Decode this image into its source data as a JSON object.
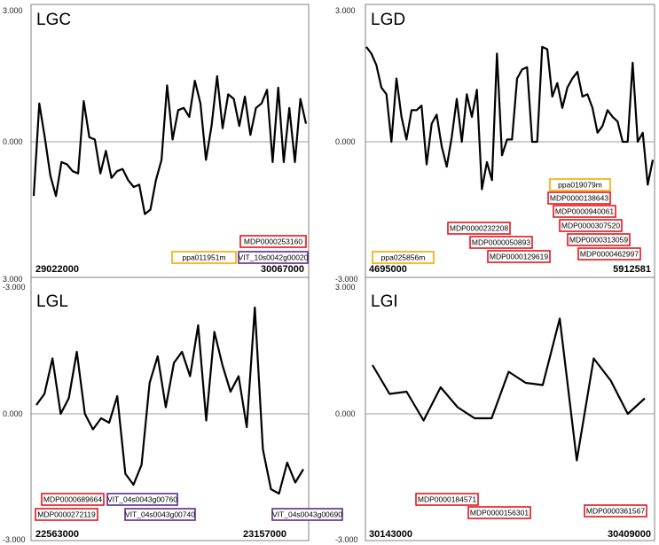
{
  "colors": {
    "red": "#e8141c",
    "orange": "#f5a800",
    "purple": "#5b2a91",
    "line": "#000000",
    "frame": "#808080"
  },
  "chart_data": [
    {
      "type": "line",
      "title": "LGC",
      "x_start": "29022000",
      "x_end": "30067000",
      "ylim": [
        -3,
        3
      ],
      "yticks": [
        "3.000",
        "0.000",
        "-3.000"
      ],
      "values": [
        -1.2,
        0.85,
        0.1,
        -0.75,
        -1.2,
        -0.45,
        -0.5,
        -0.65,
        -0.7,
        0.9,
        0.1,
        0.05,
        -0.7,
        -0.2,
        -0.8,
        -0.65,
        -0.6,
        -0.85,
        -1.0,
        -0.95,
        -1.6,
        -1.5,
        -0.85,
        -0.4,
        1.25,
        0.05,
        0.7,
        0.75,
        0.55,
        1.35,
        0.85,
        -0.4,
        0.35,
        1.45,
        0.3,
        1.05,
        0.95,
        0.35,
        1.0,
        0.15,
        0.75,
        0.85,
        1.15,
        -0.45,
        1.2,
        -0.45,
        0.75,
        -0.45,
        0.95,
        0.4
      ],
      "genes": [
        {
          "id": "MDP0000253160",
          "color": "red"
        },
        {
          "id": "ppa011951m",
          "color": "orange"
        },
        {
          "id": "VIT_10s0042g00020",
          "color": "purple"
        }
      ]
    },
    {
      "type": "line",
      "title": "LGD",
      "x_start": "4695000",
      "x_end": "5912581",
      "ylim": [
        -3,
        3
      ],
      "yticks": [
        "3.000",
        "0.000",
        "-3.000"
      ],
      "values": [
        2.1,
        1.95,
        1.7,
        1.2,
        1.05,
        0.0,
        1.4,
        0.55,
        0.05,
        0.7,
        0.7,
        0.8,
        -0.5,
        0.4,
        0.6,
        -0.1,
        -0.55,
        0.1,
        0.95,
        0.0,
        1.05,
        0.55,
        1.15,
        -1.05,
        -0.45,
        -0.85,
        1.95,
        -0.3,
        0.05,
        0.05,
        1.4,
        1.6,
        1.65,
        0.0,
        0.0,
        2.1,
        2.05,
        1.0,
        1.3,
        0.75,
        1.2,
        1.4,
        1.55,
        1.0,
        1.05,
        0.75,
        0.2,
        0.35,
        0.7,
        0.55,
        0.45,
        0.0,
        0.0,
        1.75,
        0.0,
        0.2,
        -0.95,
        -0.4
      ],
      "genes": [
        {
          "id": "ppa019079m",
          "color": "orange"
        },
        {
          "id": "MDP0000138643",
          "color": "red"
        },
        {
          "id": "MDP0000940061",
          "color": "red"
        },
        {
          "id": "MDP0000232208",
          "color": "red"
        },
        {
          "id": "MDP0000307520",
          "color": "red"
        },
        {
          "id": "MDP0000050893",
          "color": "red"
        },
        {
          "id": "MDP0000313059",
          "color": "red"
        },
        {
          "id": "ppa025856m",
          "color": "orange"
        },
        {
          "id": "MDP0000129619",
          "color": "red"
        },
        {
          "id": "MDP0000462997",
          "color": "red"
        }
      ]
    },
    {
      "type": "line",
      "title": "LGL",
      "x_start": "22563000",
      "x_end": "23157000",
      "ylim": [
        -3,
        3
      ],
      "yticks": [
        "3.000",
        "0.000",
        "-3.000"
      ],
      "values": [
        0.2,
        0.45,
        1.25,
        0.0,
        0.35,
        1.4,
        0.0,
        -0.35,
        -0.1,
        -0.2,
        0.4,
        -1.35,
        -1.6,
        -1.15,
        0.7,
        1.3,
        0.15,
        1.15,
        1.4,
        0.85,
        2.0,
        -0.15,
        1.85,
        1.1,
        0.5,
        0.85,
        -0.3,
        2.4,
        -0.8,
        -1.7,
        -1.8,
        -1.1,
        -1.55,
        -1.25
      ],
      "genes": [
        {
          "id": "MDP0000689664",
          "color": "red"
        },
        {
          "id": "VIT_04s0043g00760",
          "color": "purple"
        },
        {
          "id": "MDP0000272119",
          "color": "red"
        },
        {
          "id": "VIT_04s0043g00740",
          "color": "purple"
        },
        {
          "id": "VIT_04s0043g00690",
          "color": "purple"
        }
      ]
    },
    {
      "type": "line",
      "title": "LGI",
      "x_start": "30143000",
      "x_end": "30409000",
      "ylim": [
        -3,
        3
      ],
      "yticks": [
        "3.000",
        "0.000",
        "-3.000"
      ],
      "values": [
        1.1,
        0.45,
        0.5,
        -0.15,
        0.6,
        0.15,
        -0.1,
        -0.1,
        0.95,
        0.7,
        0.65,
        2.15,
        -1.05,
        1.25,
        0.75,
        0.0,
        0.35
      ],
      "genes": [
        {
          "id": "MDP0000184571",
          "color": "red"
        },
        {
          "id": "MDP0000156301",
          "color": "red"
        },
        {
          "id": "MDP0000361567",
          "color": "red"
        }
      ]
    }
  ]
}
